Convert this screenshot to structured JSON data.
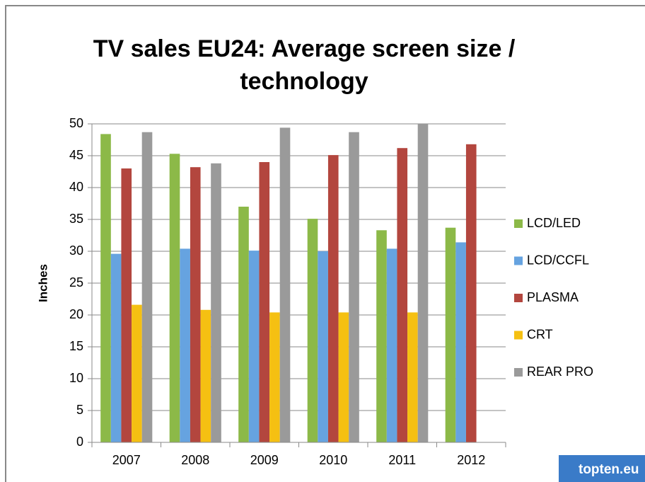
{
  "chart_data": {
    "type": "bar",
    "title": "TV sales EU24: Average screen size / technology",
    "y_label": "Inches",
    "categories": [
      "2007",
      "2008",
      "2009",
      "2010",
      "2011",
      "2012"
    ],
    "series": [
      {
        "name": "LCD/LED",
        "color": "#8cb948",
        "values": [
          48.4,
          45.3,
          37,
          35.1,
          33.3,
          33.7
        ]
      },
      {
        "name": "LCD/CCFL",
        "color": "#66a3e0",
        "values": [
          29.6,
          30.4,
          30.1,
          30,
          30.4,
          31.4
        ]
      },
      {
        "name": "PLASMA",
        "color": "#b3463e",
        "values": [
          43,
          43.2,
          44,
          45.1,
          46.2,
          46.8
        ]
      },
      {
        "name": "CRT",
        "color": "#f5c012",
        "values": [
          21.6,
          20.8,
          20.4,
          20.4,
          20.4,
          null
        ]
      },
      {
        "name": "REAR PRO",
        "color": "#9a9a9a",
        "values": [
          48.7,
          43.8,
          49.4,
          48.7,
          50,
          null
        ]
      }
    ],
    "ylim": [
      0,
      50
    ],
    "yticks": [
      0,
      5,
      10,
      15,
      20,
      25,
      30,
      35,
      40,
      45,
      50
    ],
    "grid": true,
    "legend": "right",
    "logo": "topten.eu"
  }
}
